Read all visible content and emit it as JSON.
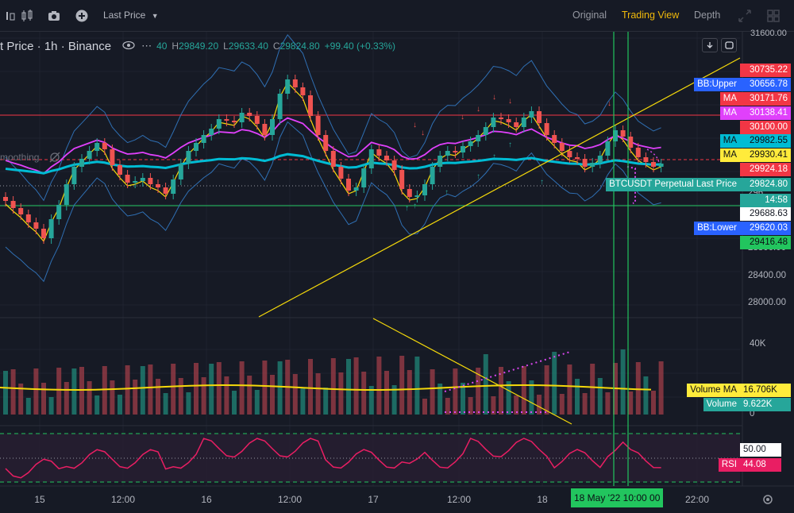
{
  "toolbar": {
    "price_type": "Last Price",
    "views": [
      {
        "label": "Original",
        "active": false
      },
      {
        "label": "Trading View",
        "active": true
      },
      {
        "label": "Depth",
        "active": false
      }
    ],
    "icons": [
      "candles-icon",
      "camera-icon",
      "plus-circle-icon",
      "chevron-down-icon",
      "expand-icon",
      "grid-icon"
    ]
  },
  "legend": {
    "title": "t Price · 1h · Binance",
    "o_value": "40",
    "h_label": "H",
    "h_value": "29849.20",
    "l_label": "L",
    "l_value": "29633.40",
    "c_label": "C",
    "c_value": "29824.80",
    "change": "+99.40 (+0.33%)",
    "icons": [
      "eye-icon",
      "more-icon"
    ]
  },
  "indicator_label": "moothing",
  "price_axis": {
    "ticks": [
      "31600.00",
      "28800.00",
      "28400.00",
      "28000.00"
    ],
    "partial": [
      "296",
      "29"
    ],
    "tags": [
      {
        "label": "",
        "value": "30735.22",
        "color": "#f23645",
        "text": "#ffffff"
      },
      {
        "label": "BB:Upper",
        "value": "30656.78",
        "color": "#2962ff",
        "text": "#ffffff"
      },
      {
        "label": "MA",
        "value": "30171.76",
        "color": "#f23645",
        "text": "#ffffff"
      },
      {
        "label": "MA",
        "value": "30138.41",
        "color": "#e040fb",
        "text": "#ffffff"
      },
      {
        "label": "",
        "value": "30100.00",
        "color": "#f23645",
        "text": "#ffffff"
      },
      {
        "label": "MA",
        "value": "29982.55",
        "color": "#00bcd4",
        "text": "#0b0e14"
      },
      {
        "label": "MA",
        "value": "29930.41",
        "color": "#ffeb3b",
        "text": "#0b0e14"
      },
      {
        "label": "",
        "value": "29924.18",
        "color": "#f23645",
        "text": "#ffffff"
      },
      {
        "label": "BTCUSDT Perpetual Last Price",
        "value": "29824.80",
        "color": "#26a69a",
        "text": "#ffffff"
      },
      {
        "label": "",
        "value": "14:58",
        "color": "#26a69a",
        "text": "#ffffff"
      },
      {
        "label": "",
        "value": "29688.63",
        "color": "#ffffff",
        "text": "#131722"
      },
      {
        "label": "BB:Lower",
        "value": "29620.03",
        "color": "#2962ff",
        "text": "#ffffff"
      },
      {
        "label": "",
        "value": "29416.48",
        "color": "#22c55e",
        "text": "#0b0e14"
      }
    ]
  },
  "volume_pane": {
    "ticks": [
      "40K",
      "0"
    ],
    "tags": [
      {
        "label": "Volume MA",
        "value": "16.706K",
        "color": "#ffeb3b",
        "text": "#0b0e14"
      },
      {
        "label": "Volume",
        "value": "9.622K",
        "color": "#26a69a",
        "text": "#ffffff"
      }
    ]
  },
  "rsi_pane": {
    "tags": [
      {
        "label": "",
        "value": "50.00",
        "color": "#ffffff",
        "text": "#131722"
      },
      {
        "label": "RSI",
        "value": "44.08",
        "color": "#e91e63",
        "text": "#ffffff"
      }
    ]
  },
  "time_axis": {
    "labels": [
      "15",
      "12:00",
      "16",
      "12:00",
      "17",
      "12:00",
      "18",
      "22:00"
    ],
    "crosshair_label": "18 May '22   10:00 00"
  },
  "colors": {
    "background": "#161a25",
    "up": "#26a69a",
    "down": "#ef5350",
    "accent": "#f0b90b"
  }
}
